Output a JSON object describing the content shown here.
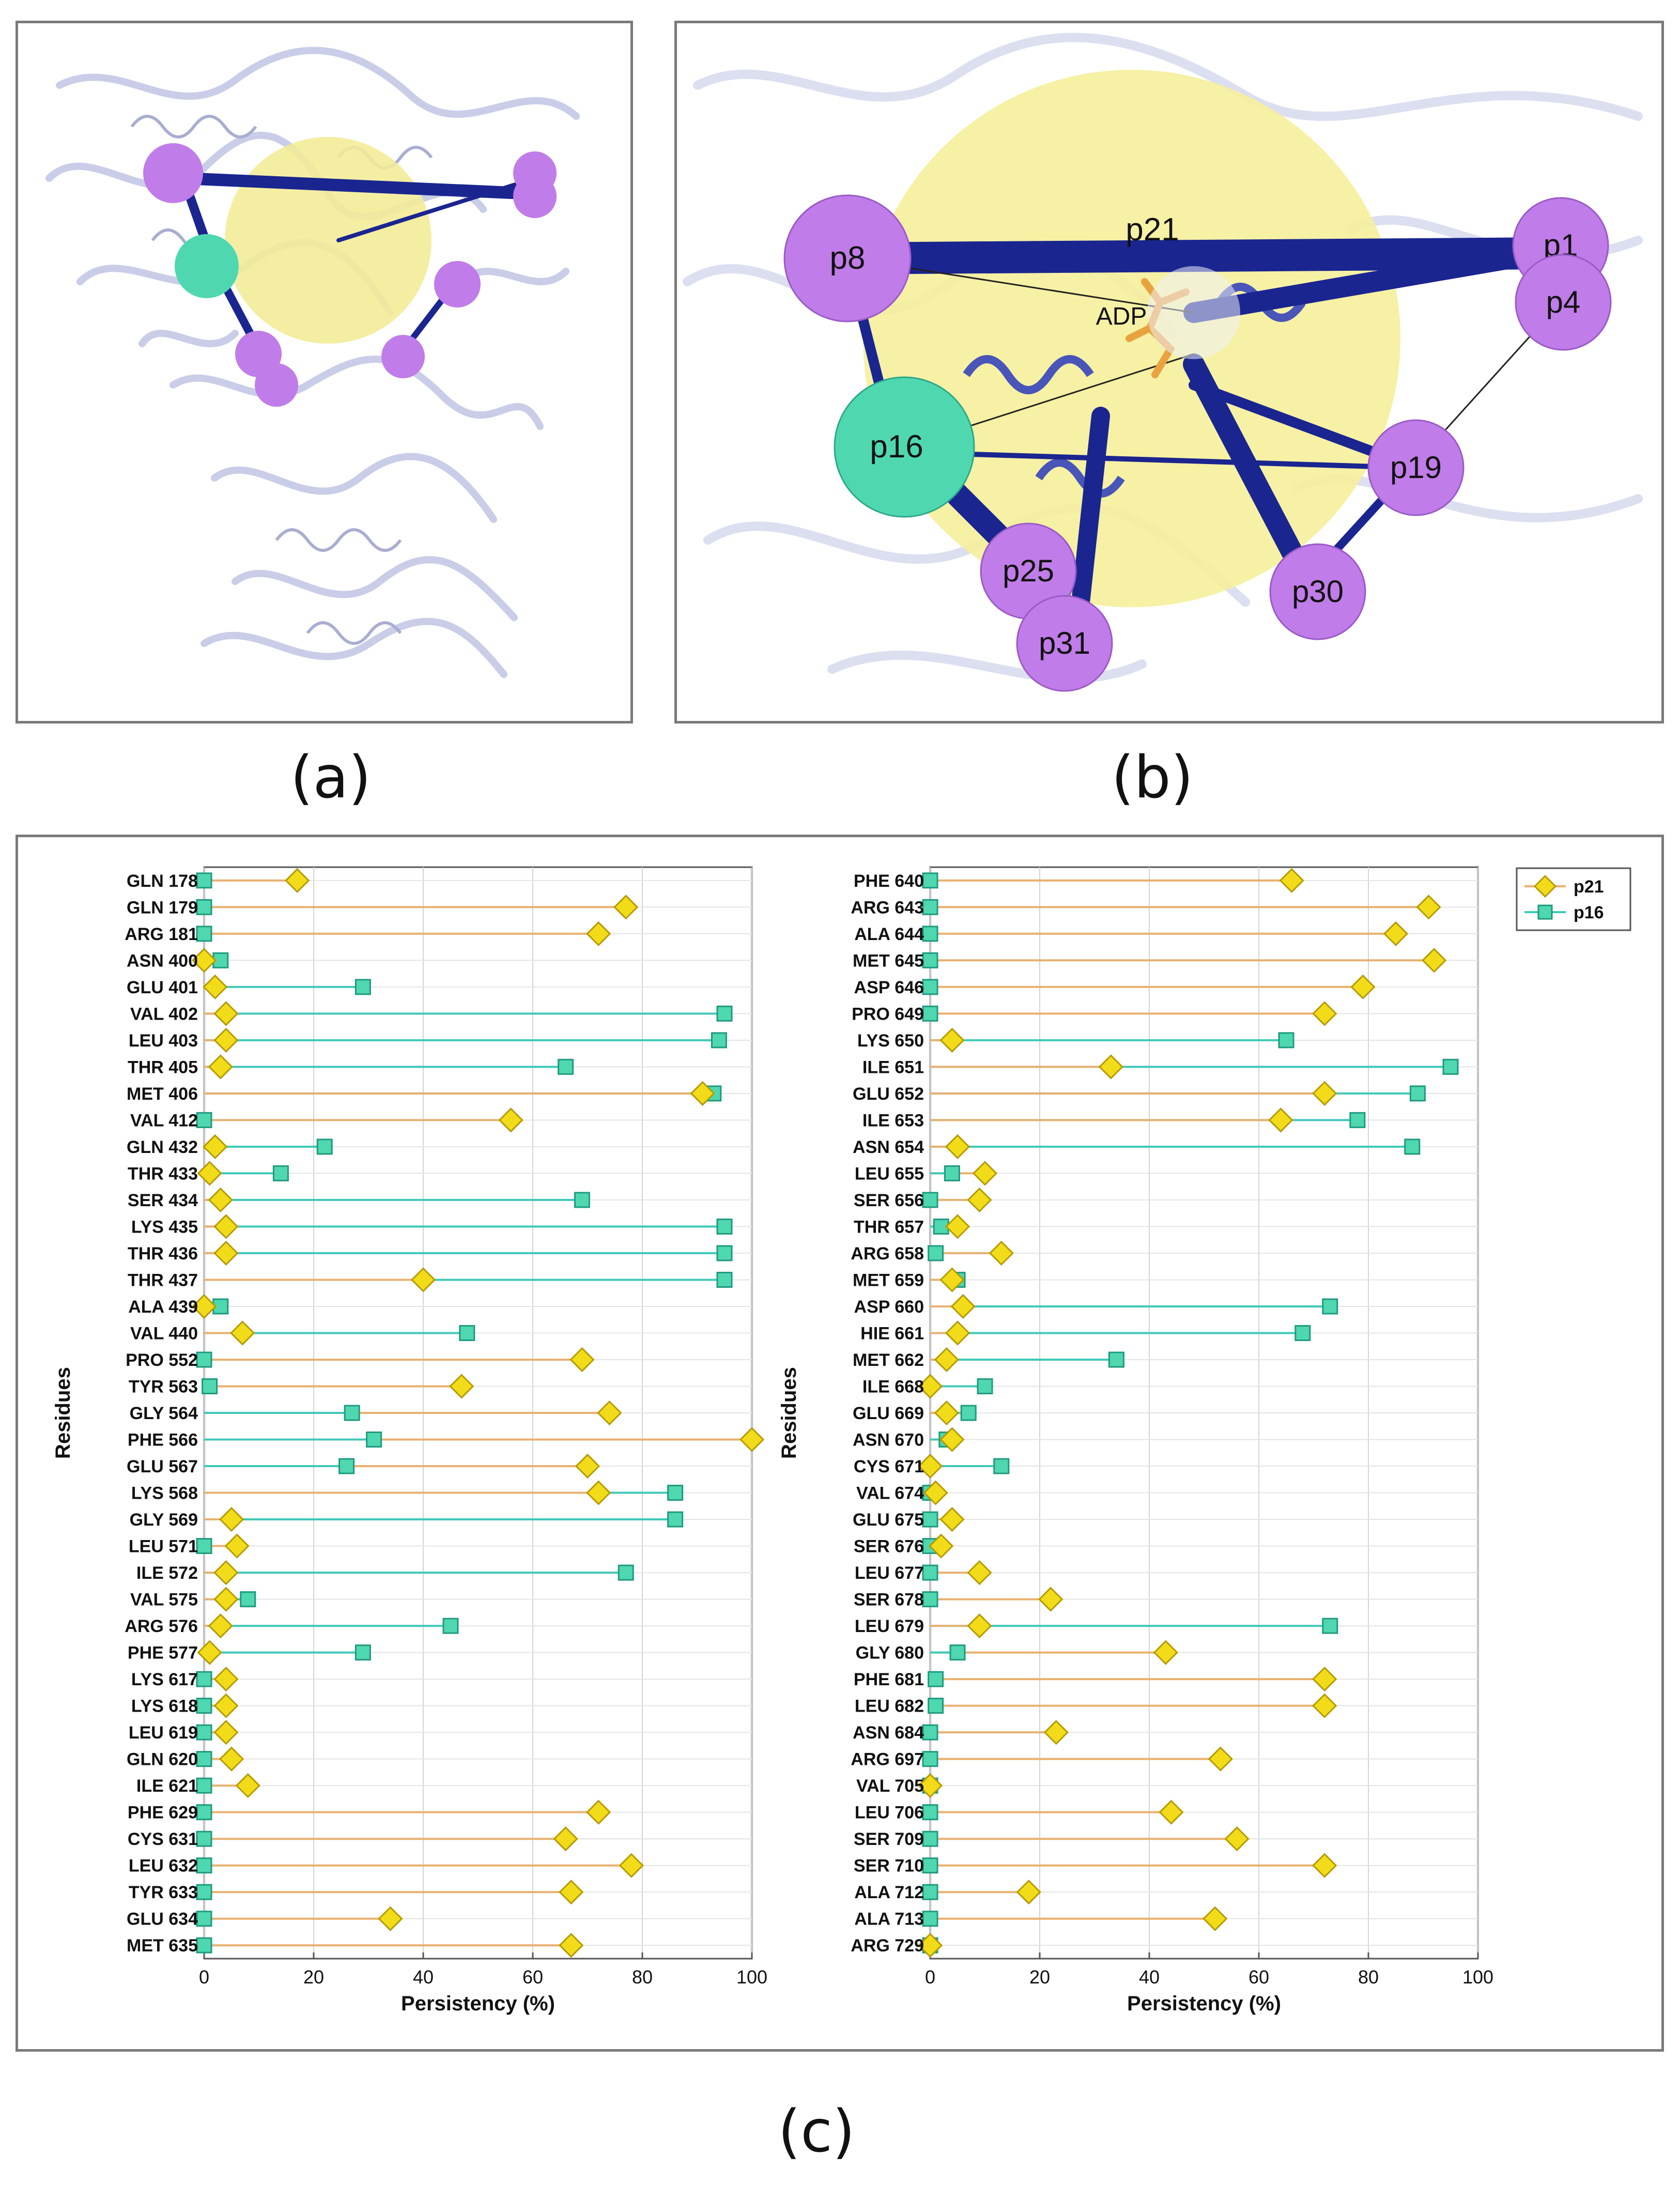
{
  "captions": {
    "a": "(a)",
    "b": "(b)",
    "c": "(c)"
  },
  "panel_b": {
    "center_label": "p21",
    "ligand_label": "ADP",
    "nodes": [
      {
        "label": "p8",
        "kind": "purple"
      },
      {
        "label": "p1",
        "kind": "purple"
      },
      {
        "label": "p4",
        "kind": "purple"
      },
      {
        "label": "p16",
        "kind": "cyan"
      },
      {
        "label": "p19",
        "kind": "purple"
      },
      {
        "label": "p25",
        "kind": "purple"
      },
      {
        "label": "p31",
        "kind": "purple"
      },
      {
        "label": "p30",
        "kind": "purple"
      }
    ]
  },
  "colors": {
    "p21": "#f2dc1a",
    "p21_line": "#e8b070",
    "p16": "#4fd8b0",
    "p16_line": "#40c8b8",
    "sphere_purple": "#c07ce8",
    "sphere_yellow": "#f3ec96",
    "edge_blue": "#1a2590",
    "ribbon": "#c8cce8",
    "frame": "#7a7a7a"
  },
  "chart_data": [
    {
      "type": "dot-plot",
      "title": "",
      "xlabel": "Persistency (%)",
      "ylabel": "Residues",
      "xlim": [
        0,
        100
      ],
      "xticks": [
        0,
        20,
        40,
        60,
        80,
        100
      ],
      "grid": true,
      "legend": null,
      "categories": [
        "GLN 178",
        "GLN 179",
        "ARG 181",
        "ASN 400",
        "GLU 401",
        "VAL 402",
        "LEU 403",
        "THR 405",
        "MET 406",
        "VAL 412",
        "GLN 432",
        "THR 433",
        "SER 434",
        "LYS 435",
        "THR 436",
        "THR 437",
        "ALA 439",
        "VAL 440",
        "PRO 552",
        "TYR 563",
        "GLY 564",
        "PHE 566",
        "GLU 567",
        "LYS 568",
        "GLY 569",
        "LEU 571",
        "ILE 572",
        "VAL 575",
        "ARG 576",
        "PHE 577",
        "LYS 617",
        "LYS 618",
        "LEU 619",
        "GLN 620",
        "ILE 621",
        "PHE 629",
        "CYS 631",
        "LEU 632",
        "TYR 633",
        "GLU 634",
        "MET 635"
      ],
      "series": [
        {
          "name": "p21",
          "values": [
            17,
            77,
            72,
            0,
            2,
            4,
            4,
            3,
            91,
            56,
            2,
            1,
            3,
            4,
            4,
            40,
            0,
            7,
            69,
            47,
            74,
            100,
            70,
            72,
            5,
            6,
            4,
            4,
            3,
            1,
            4,
            4,
            4,
            5,
            8,
            72,
            66,
            78,
            67,
            34,
            67
          ]
        },
        {
          "name": "p16",
          "values": [
            0,
            0,
            0,
            3,
            29,
            95,
            94,
            66,
            93,
            0,
            22,
            14,
            69,
            95,
            95,
            95,
            3,
            48,
            0,
            1,
            27,
            31,
            26,
            86,
            86,
            0,
            77,
            8,
            45,
            29,
            0,
            0,
            0,
            0,
            0,
            0,
            0,
            0,
            0,
            0,
            0
          ]
        }
      ]
    },
    {
      "type": "dot-plot",
      "title": "",
      "xlabel": "Persistency (%)",
      "ylabel": "Residues",
      "xlim": [
        0,
        100
      ],
      "xticks": [
        0,
        20,
        40,
        60,
        80,
        100
      ],
      "grid": true,
      "legend": "top-right",
      "categories": [
        "PHE 640",
        "ARG 643",
        "ALA 644",
        "MET 645",
        "ASP 646",
        "PRO 649",
        "LYS 650",
        "ILE 651",
        "GLU 652",
        "ILE 653",
        "ASN 654",
        "LEU 655",
        "SER 656",
        "THR 657",
        "ARG 658",
        "MET 659",
        "ASP 660",
        "HIE 661",
        "MET 662",
        "ILE 668",
        "GLU 669",
        "ASN 670",
        "CYS 671",
        "VAL 674",
        "GLU 675",
        "SER 676",
        "LEU 677",
        "SER 678",
        "LEU 679",
        "GLY 680",
        "PHE 681",
        "LEU 682",
        "ASN 684",
        "ARG 697",
        "VAL 705",
        "LEU 706",
        "SER 709",
        "SER 710",
        "ALA 712",
        "ALA 713",
        "ARG 729"
      ],
      "series": [
        {
          "name": "p21",
          "values": [
            66,
            91,
            85,
            92,
            79,
            72,
            4,
            33,
            72,
            64,
            5,
            10,
            9,
            5,
            13,
            4,
            6,
            5,
            3,
            0,
            3,
            4,
            0,
            1,
            4,
            2,
            9,
            22,
            9,
            43,
            72,
            72,
            23,
            53,
            0,
            44,
            56,
            72,
            18,
            52,
            0
          ]
        },
        {
          "name": "p16",
          "values": [
            0,
            0,
            0,
            0,
            0,
            0,
            65,
            95,
            89,
            78,
            88,
            4,
            0,
            2,
            1,
            5,
            73,
            68,
            34,
            10,
            7,
            3,
            13,
            0,
            0,
            0,
            0,
            0,
            73,
            5,
            1,
            1,
            0,
            0,
            0,
            0,
            0,
            0,
            0,
            0,
            0
          ]
        }
      ]
    }
  ]
}
